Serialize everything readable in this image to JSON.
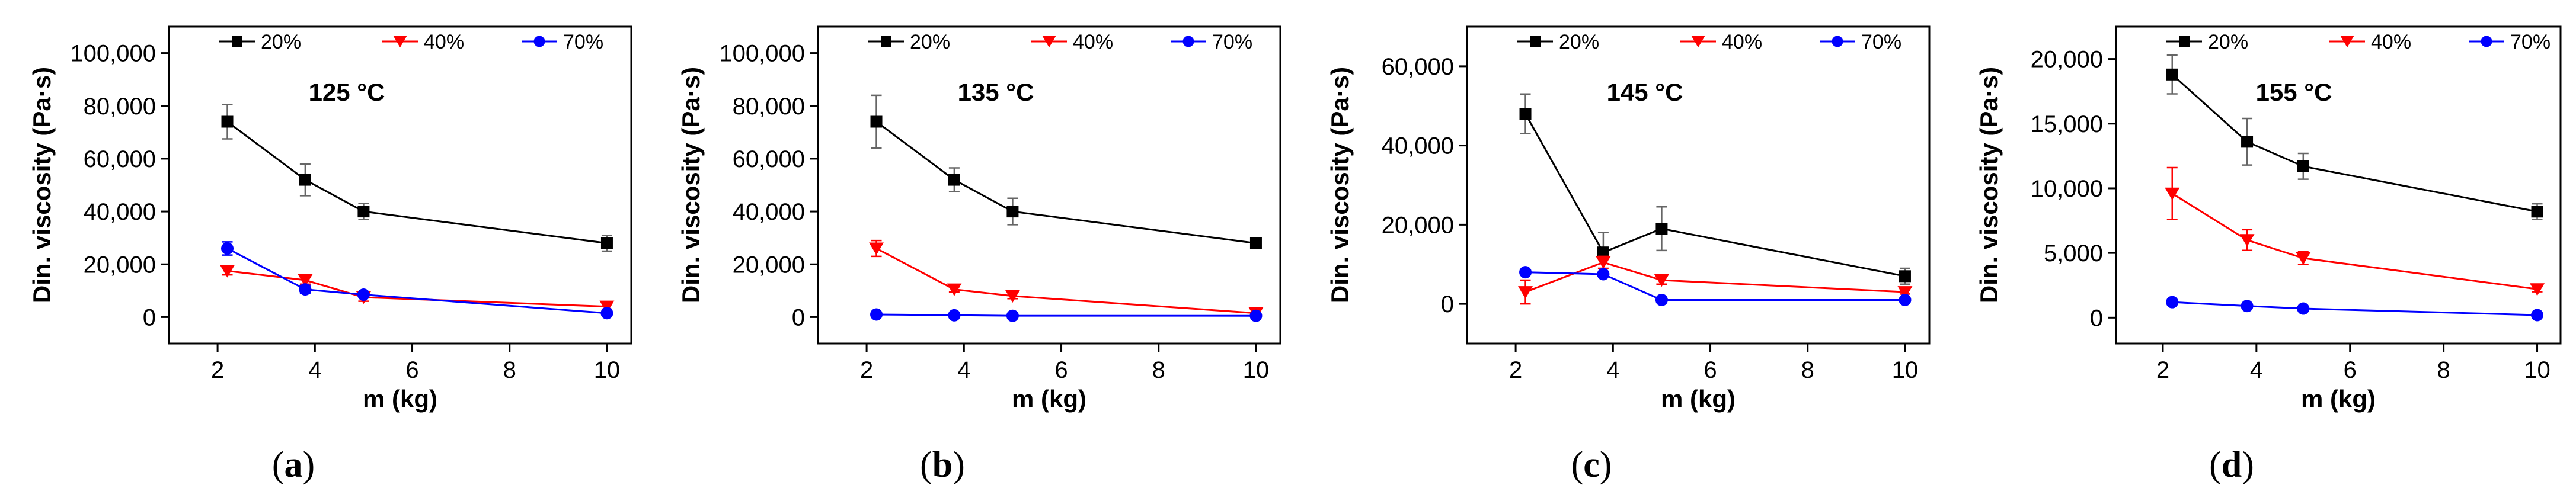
{
  "colors": {
    "s20": "#000000",
    "s40": "#ff0000",
    "s70": "#0000ff"
  },
  "chart_data": [
    {
      "type": "line",
      "panel_label": "(a)",
      "annotation": "125 °C",
      "xlabel": "m (kg)",
      "ylabel": "Din. viscosity (Pa·s)",
      "xlim": [
        1,
        10.5
      ],
      "ylim": [
        -10000,
        110000
      ],
      "xticks": [
        2,
        4,
        6,
        8,
        10
      ],
      "xtick_labels": [
        "2",
        "4",
        "6",
        "8",
        "10"
      ],
      "yticks": [
        0,
        20000,
        40000,
        60000,
        80000,
        100000
      ],
      "ytick_labels": [
        "0",
        "20,000",
        "40,000",
        "60,000",
        "80,000",
        "100,000"
      ],
      "grid": false,
      "legend_position": "top",
      "x": [
        2.2,
        3.8,
        5,
        10
      ],
      "series": [
        {
          "name": "20%",
          "marker": "square",
          "values": [
            74000,
            52000,
            40000,
            28000
          ],
          "errors": [
            6500,
            6000,
            3000,
            3000
          ]
        },
        {
          "name": "40%",
          "marker": "triangle-down",
          "values": [
            17500,
            14000,
            7500,
            4000
          ],
          "errors": [
            1500,
            1500,
            1500,
            1000
          ]
        },
        {
          "name": "70%",
          "marker": "circle",
          "values": [
            26000,
            10500,
            8500,
            1500
          ],
          "errors": [
            2500,
            1500,
            1000,
            500
          ]
        }
      ]
    },
    {
      "type": "line",
      "panel_label": "(b)",
      "annotation": "135 °C",
      "xlabel": "m (kg)",
      "ylabel": "Din. viscosity (Pa·s)",
      "xlim": [
        1,
        10.5
      ],
      "ylim": [
        -10000,
        110000
      ],
      "xticks": [
        2,
        4,
        6,
        8,
        10
      ],
      "xtick_labels": [
        "2",
        "4",
        "6",
        "8",
        "10"
      ],
      "yticks": [
        0,
        20000,
        40000,
        60000,
        80000,
        100000
      ],
      "ytick_labels": [
        "0",
        "20,000",
        "40,000",
        "60,000",
        "80,000",
        "100,000"
      ],
      "grid": false,
      "legend_position": "top",
      "x": [
        2.2,
        3.8,
        5,
        10
      ],
      "series": [
        {
          "name": "20%",
          "marker": "square",
          "values": [
            74000,
            52000,
            40000,
            28000
          ],
          "errors": [
            10000,
            4500,
            5000,
            2000
          ]
        },
        {
          "name": "40%",
          "marker": "triangle-down",
          "values": [
            26000,
            10500,
            8000,
            1500
          ],
          "errors": [
            3000,
            1000,
            1000,
            500
          ]
        },
        {
          "name": "70%",
          "marker": "circle",
          "values": [
            1000,
            700,
            500,
            500
          ],
          "errors": [
            300,
            200,
            200,
            200
          ]
        }
      ]
    },
    {
      "type": "line",
      "panel_label": "(c)",
      "annotation": "145 °C",
      "xlabel": "m (kg)",
      "ylabel": "Din. viscosity (Pa·s)",
      "xlim": [
        1,
        10.5
      ],
      "ylim": [
        -10000,
        70000
      ],
      "xticks": [
        2,
        4,
        6,
        8,
        10
      ],
      "xtick_labels": [
        "2",
        "4",
        "6",
        "8",
        "10"
      ],
      "yticks": [
        0,
        20000,
        40000,
        60000
      ],
      "ytick_labels": [
        "0",
        "20,000",
        "40,000",
        "60,000"
      ],
      "grid": false,
      "legend_position": "top",
      "x": [
        2.2,
        3.8,
        5,
        10
      ],
      "series": [
        {
          "name": "20%",
          "marker": "square",
          "values": [
            48000,
            13000,
            19000,
            7000
          ],
          "errors": [
            5000,
            5000,
            5500,
            2000
          ]
        },
        {
          "name": "40%",
          "marker": "triangle-down",
          "values": [
            3000,
            10500,
            6000,
            3000
          ],
          "errors": [
            3000,
            1500,
            1000,
            500
          ]
        },
        {
          "name": "70%",
          "marker": "circle",
          "values": [
            8000,
            7500,
            1000,
            1000
          ],
          "errors": [
            500,
            500,
            300,
            300
          ]
        }
      ]
    },
    {
      "type": "line",
      "panel_label": "(d)",
      "annotation": "155 °C",
      "xlabel": "m (kg)",
      "ylabel": "Din. viscosity (Pa·s)",
      "xlim": [
        1,
        10.5
      ],
      "ylim": [
        -2000,
        22500
      ],
      "xticks": [
        2,
        4,
        6,
        8,
        10
      ],
      "xtick_labels": [
        "2",
        "4",
        "6",
        "8",
        "10"
      ],
      "yticks": [
        0,
        5000,
        10000,
        15000,
        20000
      ],
      "ytick_labels": [
        "0",
        "5,000",
        "10,000",
        "15,000",
        "20,000"
      ],
      "grid": false,
      "legend_position": "top",
      "x": [
        2.2,
        3.8,
        5,
        10
      ],
      "series": [
        {
          "name": "20%",
          "marker": "square",
          "values": [
            18800,
            13600,
            11700,
            8200
          ],
          "errors": [
            1500,
            1800,
            1000,
            600
          ]
        },
        {
          "name": "40%",
          "marker": "triangle-down",
          "values": [
            9600,
            6000,
            4600,
            2200
          ],
          "errors": [
            2000,
            800,
            500,
            200
          ]
        },
        {
          "name": "70%",
          "marker": "circle",
          "values": [
            1200,
            900,
            700,
            200
          ],
          "errors": [
            150,
            100,
            100,
            50
          ]
        }
      ]
    }
  ]
}
